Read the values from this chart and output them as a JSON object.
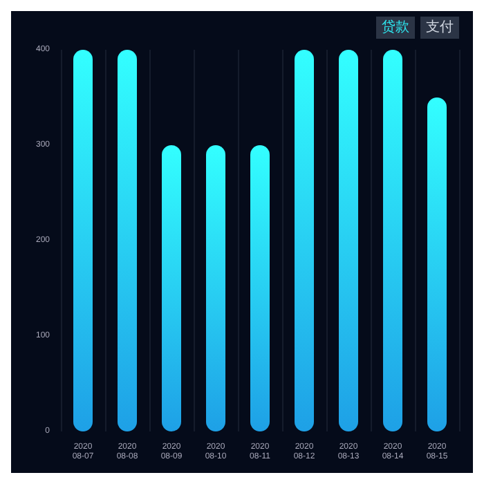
{
  "chart_data": {
    "type": "bar",
    "categories": [
      "2020\n08-07",
      "2020\n08-08",
      "2020\n08-09",
      "2020\n08-10",
      "2020\n08-11",
      "2020\n08-12",
      "2020\n08-13",
      "2020\n08-14",
      "2020\n08-15"
    ],
    "values": [
      400,
      400,
      300,
      300,
      300,
      400,
      400,
      400,
      350
    ],
    "color": "#1ea0e6",
    "ylim": [
      0,
      400
    ],
    "yticks": [
      0,
      100,
      200,
      300,
      400
    ],
    "grid": "x",
    "annotations": [
      "贷款",
      "支付"
    ]
  }
}
